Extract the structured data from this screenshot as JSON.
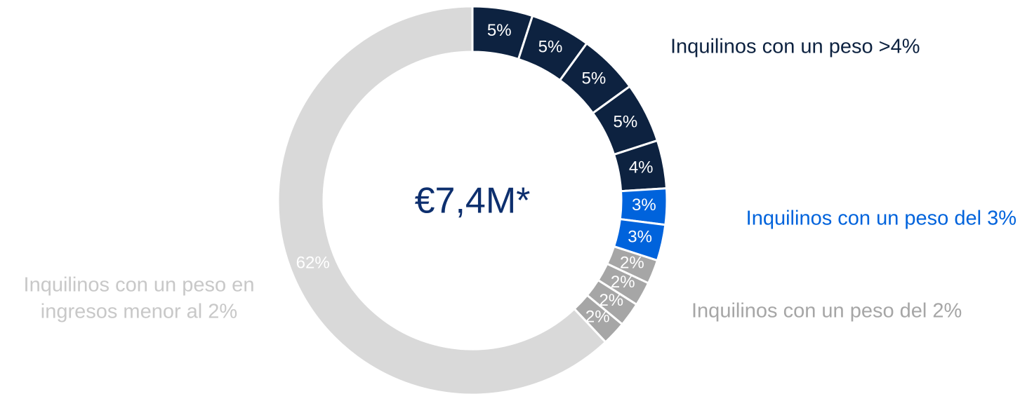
{
  "chart_data": {
    "type": "pie",
    "center_label": "€7,4M*",
    "categories": [
      null,
      null,
      null,
      null,
      null,
      null,
      null,
      null,
      null,
      null,
      null,
      null
    ],
    "values": [
      5,
      5,
      5,
      5,
      4,
      3,
      3,
      2,
      2,
      2,
      2,
      62
    ],
    "value_labels": [
      "5%",
      "5%",
      "5%",
      "5%",
      "4%",
      "3%",
      "3%",
      "2%",
      "2%",
      "2%",
      "2%",
      "62%"
    ],
    "colors": [
      "#0d2240",
      "#0d2240",
      "#0d2240",
      "#0d2240",
      "#0d2240",
      "#0063dc",
      "#0063dc",
      "#a6a6a6",
      "#a6a6a6",
      "#a6a6a6",
      "#a6a6a6",
      "#d9d9d9"
    ],
    "groups": [
      {
        "lines": [
          "Inquilinos con un peso >4%"
        ],
        "color": "#0d2240"
      },
      {
        "lines": [
          "Inquilinos con un peso del 3%"
        ],
        "color": "#0063dc"
      },
      {
        "lines": [
          "Inquilinos con un peso del 2%"
        ],
        "color": "#a6a6a6"
      },
      {
        "lines": [
          "Inquilinos con un peso en",
          "ingresos menor al 2%"
        ],
        "color": "#c8c8c8"
      }
    ]
  }
}
